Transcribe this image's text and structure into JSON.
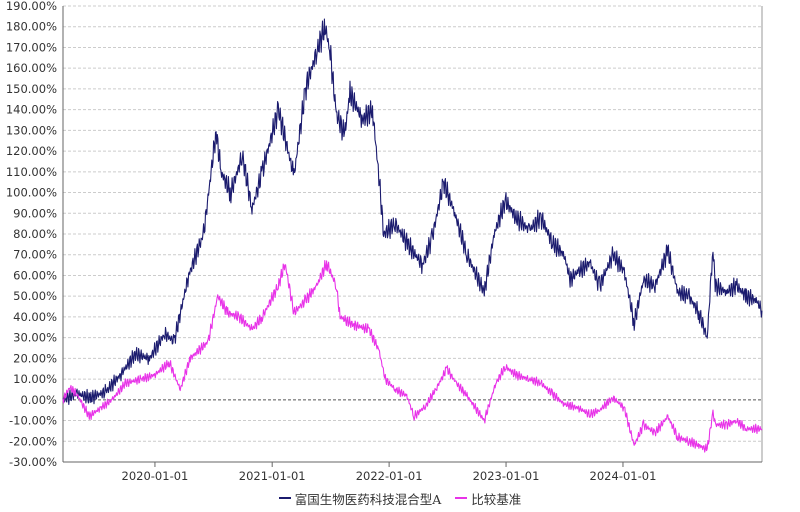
{
  "chart_data": {
    "type": "line",
    "title": "",
    "xlabel": "",
    "ylabel": "",
    "ylim": [
      -30,
      190
    ],
    "y_ticks": [
      -30,
      -20,
      -10,
      0,
      10,
      20,
      30,
      40,
      50,
      60,
      70,
      80,
      90,
      100,
      110,
      120,
      130,
      140,
      150,
      160,
      170,
      180,
      190
    ],
    "y_tick_labels": [
      "-30.00%",
      "-20.00%",
      "-10.00%",
      "0.00%",
      "10.00%",
      "20.00%",
      "30.00%",
      "40.00%",
      "50.00%",
      "60.00%",
      "70.00%",
      "80.00%",
      "90.00%",
      "100.00%",
      "110.00%",
      "120.00%",
      "130.00%",
      "140.00%",
      "150.00%",
      "160.00%",
      "170.00%",
      "180.00%",
      "190.00%"
    ],
    "xlim": [
      "2019-03-20",
      "2025-03-10"
    ],
    "x_ticks": [
      "2020-01-01",
      "2021-01-01",
      "2022-01-01",
      "2023-01-01",
      "2024-01-01"
    ],
    "grid": true,
    "legend_position": "bottom",
    "series": [
      {
        "name": "富国生物医药科技混合型A",
        "color": "#1b1b6e",
        "points": [
          [
            "2019-03-20",
            0
          ],
          [
            "2019-05-01",
            3
          ],
          [
            "2019-06-15",
            1
          ],
          [
            "2019-08-01",
            4
          ],
          [
            "2019-09-15",
            12
          ],
          [
            "2019-11-01",
            22
          ],
          [
            "2019-12-15",
            20
          ],
          [
            "2020-02-01",
            32
          ],
          [
            "2020-03-01",
            28
          ],
          [
            "2020-04-15",
            60
          ],
          [
            "2020-06-01",
            80
          ],
          [
            "2020-07-10",
            130
          ],
          [
            "2020-07-25",
            110
          ],
          [
            "2020-08-25",
            100
          ],
          [
            "2020-09-30",
            118
          ],
          [
            "2020-10-30",
            92
          ],
          [
            "2020-12-01",
            110
          ],
          [
            "2021-01-20",
            140
          ],
          [
            "2021-03-10",
            108
          ],
          [
            "2021-04-15",
            150
          ],
          [
            "2021-05-20",
            168
          ],
          [
            "2021-06-15",
            180
          ],
          [
            "2021-07-01",
            168
          ],
          [
            "2021-07-20",
            138
          ],
          [
            "2021-08-15",
            128
          ],
          [
            "2021-09-01",
            148
          ],
          [
            "2021-10-10",
            135
          ],
          [
            "2021-11-10",
            140
          ],
          [
            "2021-11-30",
            108
          ],
          [
            "2021-12-15",
            80
          ],
          [
            "2022-01-20",
            85
          ],
          [
            "2022-03-01",
            75
          ],
          [
            "2022-04-15",
            65
          ],
          [
            "2022-05-15",
            78
          ],
          [
            "2022-06-20",
            105
          ],
          [
            "2022-07-25",
            90
          ],
          [
            "2022-09-01",
            70
          ],
          [
            "2022-10-25",
            52
          ],
          [
            "2022-11-25",
            80
          ],
          [
            "2022-12-30",
            96
          ],
          [
            "2023-02-01",
            88
          ],
          [
            "2023-03-15",
            82
          ],
          [
            "2023-04-20",
            88
          ],
          [
            "2023-05-25",
            76
          ],
          [
            "2023-07-01",
            70
          ],
          [
            "2023-07-20",
            58
          ],
          [
            "2023-08-15",
            62
          ],
          [
            "2023-09-20",
            66
          ],
          [
            "2023-10-20",
            55
          ],
          [
            "2023-12-01",
            70
          ],
          [
            "2024-01-05",
            62
          ],
          [
            "2024-02-05",
            37
          ],
          [
            "2024-03-05",
            58
          ],
          [
            "2024-04-10",
            55
          ],
          [
            "2024-05-20",
            72
          ],
          [
            "2024-06-20",
            52
          ],
          [
            "2024-07-25",
            50
          ],
          [
            "2024-08-25",
            42
          ],
          [
            "2024-09-20",
            30
          ],
          [
            "2024-10-08",
            74
          ],
          [
            "2024-10-15",
            55
          ],
          [
            "2024-11-20",
            52
          ],
          [
            "2024-12-20",
            55
          ],
          [
            "2025-01-20",
            50
          ],
          [
            "2025-02-20",
            48
          ],
          [
            "2025-03-10",
            43
          ]
        ]
      },
      {
        "name": "比较基准",
        "color": "#e833e8",
        "points": [
          [
            "2019-03-20",
            0
          ],
          [
            "2019-04-10",
            6
          ],
          [
            "2019-05-01",
            3
          ],
          [
            "2019-06-10",
            -8
          ],
          [
            "2019-07-15",
            -4
          ],
          [
            "2019-08-20",
            0
          ],
          [
            "2019-10-01",
            8
          ],
          [
            "2019-11-20",
            10
          ],
          [
            "2019-12-31",
            12
          ],
          [
            "2020-02-15",
            18
          ],
          [
            "2020-03-20",
            5
          ],
          [
            "2020-04-20",
            20
          ],
          [
            "2020-06-15",
            28
          ],
          [
            "2020-07-15",
            50
          ],
          [
            "2020-08-15",
            42
          ],
          [
            "2020-09-20",
            40
          ],
          [
            "2020-10-30",
            34
          ],
          [
            "2020-12-01",
            40
          ],
          [
            "2021-01-20",
            55
          ],
          [
            "2021-02-10",
            66
          ],
          [
            "2021-03-10",
            42
          ],
          [
            "2021-04-15",
            48
          ],
          [
            "2021-05-20",
            55
          ],
          [
            "2021-06-20",
            66
          ],
          [
            "2021-07-20",
            55
          ],
          [
            "2021-08-01",
            40
          ],
          [
            "2021-09-15",
            36
          ],
          [
            "2021-10-30",
            34
          ],
          [
            "2021-11-30",
            24
          ],
          [
            "2021-12-20",
            10
          ],
          [
            "2022-01-20",
            5
          ],
          [
            "2022-02-25",
            2
          ],
          [
            "2022-03-20",
            -8
          ],
          [
            "2022-04-25",
            -3
          ],
          [
            "2022-05-30",
            6
          ],
          [
            "2022-06-30",
            15
          ],
          [
            "2022-07-30",
            8
          ],
          [
            "2022-09-01",
            2
          ],
          [
            "2022-10-25",
            -10
          ],
          [
            "2022-11-30",
            8
          ],
          [
            "2022-12-30",
            16
          ],
          [
            "2023-02-01",
            12
          ],
          [
            "2023-03-15",
            10
          ],
          [
            "2023-04-20",
            8
          ],
          [
            "2023-05-25",
            3
          ],
          [
            "2023-07-01",
            -2
          ],
          [
            "2023-08-15",
            -4
          ],
          [
            "2023-09-20",
            -7
          ],
          [
            "2023-10-20",
            -5
          ],
          [
            "2023-12-01",
            1
          ],
          [
            "2024-01-05",
            -4
          ],
          [
            "2024-02-05",
            -22
          ],
          [
            "2024-03-05",
            -12
          ],
          [
            "2024-04-10",
            -16
          ],
          [
            "2024-05-20",
            -8
          ],
          [
            "2024-06-20",
            -18
          ],
          [
            "2024-07-25",
            -20
          ],
          [
            "2024-08-25",
            -22
          ],
          [
            "2024-09-20",
            -24
          ],
          [
            "2024-10-08",
            -6
          ],
          [
            "2024-10-15",
            -12
          ],
          [
            "2024-11-20",
            -12
          ],
          [
            "2024-12-20",
            -10
          ],
          [
            "2025-01-20",
            -14
          ],
          [
            "2025-03-10",
            -14
          ]
        ]
      }
    ]
  }
}
